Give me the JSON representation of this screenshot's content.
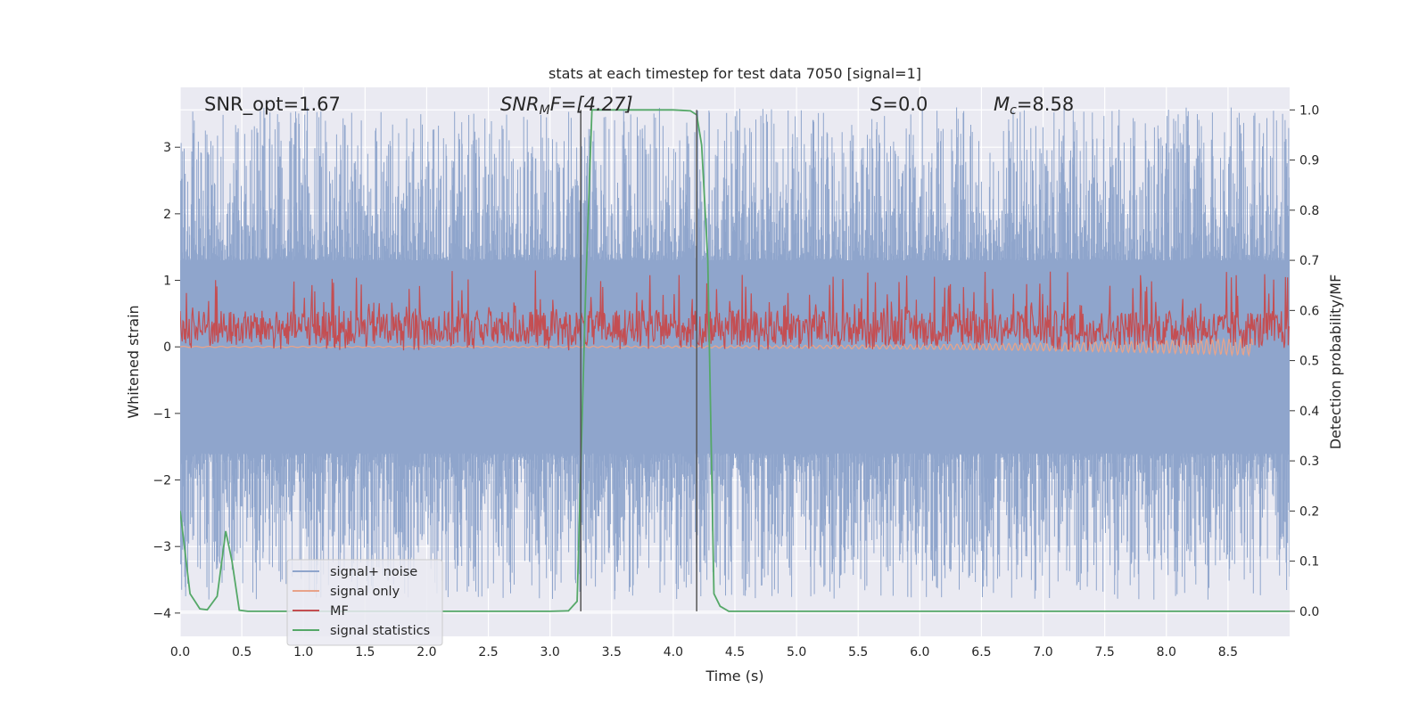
{
  "chart_data": {
    "type": "line",
    "title": "stats at each timestep for test data 7050 [signal=1]",
    "xlabel": "Time (s)",
    "ylabel_left": "Whitened strain",
    "ylabel_right": "Detection probability/MF",
    "xlim": [
      0.0,
      9.0
    ],
    "ylim_left": [
      -4.35,
      3.9
    ],
    "ylim_right": [
      -0.05,
      1.045
    ],
    "xticks": [
      "0.0",
      "0.5",
      "1.0",
      "1.5",
      "2.0",
      "2.5",
      "3.0",
      "3.5",
      "4.0",
      "4.5",
      "5.0",
      "5.5",
      "6.0",
      "6.5",
      "7.0",
      "7.5",
      "8.0",
      "8.5"
    ],
    "yticks_left": [
      "3",
      "2",
      "1",
      "0",
      "−1",
      "−2",
      "−3",
      "−4"
    ],
    "yticks_right": [
      "1.0",
      "0.9",
      "0.8",
      "0.7",
      "0.6",
      "0.5",
      "0.4",
      "0.3",
      "0.2",
      "0.1",
      "0.0"
    ],
    "grid": true,
    "legend_position": "lower-left",
    "annotations": {
      "snr_opt": "SNR_opt=1.67",
      "snr_mf_main": "SNR",
      "snr_mf_sub": "M",
      "snr_mf_rest": "F=[4.27]",
      "s_main": "S",
      "s_rest": "=0.0",
      "mc_main": "M",
      "mc_sub": "c",
      "mc_rest": "=8.58"
    },
    "series": [
      {
        "name": "signal+ noise",
        "axis": "left",
        "color": "#8fa5cc",
        "style": "noise",
        "x_range": [
          0.0,
          9.0
        ],
        "band": [
          -1.6,
          1.3
        ],
        "peak_range": [
          -3.8,
          3.6
        ]
      },
      {
        "name": "signal only",
        "axis": "left",
        "color": "#e8a38a",
        "style": "chirp",
        "x_range": [
          0.0,
          8.7
        ],
        "amplitude_end": 0.12
      },
      {
        "name": "MF",
        "axis": "right",
        "color": "#c44e52",
        "style": "noise",
        "x_range": [
          0.0,
          9.0
        ],
        "band": [
          0.53,
          0.6
        ],
        "peak_range": [
          0.52,
          0.68
        ]
      },
      {
        "name": "signal statistics",
        "axis": "right",
        "color": "#55a868",
        "style": "line",
        "x": [
          0.0,
          0.08,
          0.12,
          0.16,
          0.22,
          0.3,
          0.37,
          0.42,
          0.48,
          0.55,
          1.0,
          2.0,
          3.0,
          3.15,
          3.22,
          3.29,
          3.34,
          3.5,
          4.0,
          4.14,
          4.19,
          4.23,
          4.28,
          4.33,
          4.38,
          4.45,
          5.0,
          6.0,
          7.0,
          8.0,
          9.0
        ],
        "y": [
          0.2,
          0.035,
          0.02,
          0.005,
          0.003,
          0.03,
          0.16,
          0.1,
          0.002,
          0.0,
          0.0,
          0.0,
          0.0,
          0.001,
          0.02,
          0.65,
          1.0,
          1.0,
          1.0,
          0.998,
          0.99,
          0.93,
          0.7,
          0.035,
          0.01,
          0.0,
          0.0,
          0.0,
          0.0,
          0.0,
          0.0
        ]
      }
    ],
    "vlines": [
      3.25,
      4.19
    ],
    "vline_color": "#555555"
  }
}
